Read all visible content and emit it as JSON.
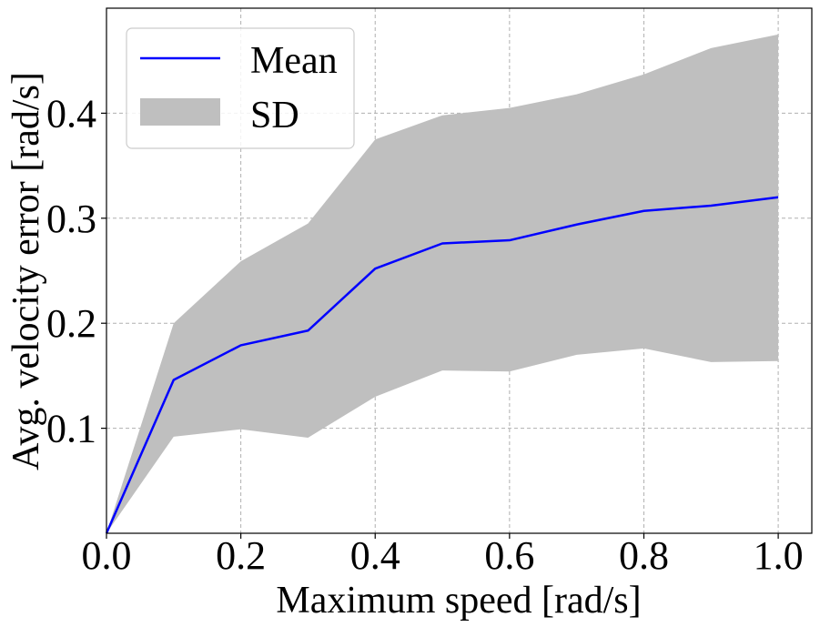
{
  "chart_data": {
    "type": "line",
    "title": "",
    "xlabel": "Maximum speed [rad/s]",
    "ylabel": "Avg. velocity error [rad/s]",
    "xlim": [
      0.0,
      1.05
    ],
    "ylim": [
      0.0,
      0.5
    ],
    "x_ticks": [
      0.0,
      0.2,
      0.4,
      0.6,
      0.8,
      1.0
    ],
    "x_tick_labels": [
      "0.0",
      "0.2",
      "0.4",
      "0.6",
      "0.8",
      "1.0"
    ],
    "y_ticks": [
      0.1,
      0.2,
      0.3,
      0.4
    ],
    "y_tick_labels": [
      "0.1",
      "0.2",
      "0.3",
      "0.4"
    ],
    "grid": true,
    "legend_position": "top-left",
    "x": [
      0.0,
      0.1,
      0.2,
      0.3,
      0.4,
      0.5,
      0.6,
      0.7,
      0.8,
      0.9,
      1.0
    ],
    "series": [
      {
        "name": "Mean",
        "kind": "line",
        "color": "#0000ff",
        "values": [
          0.0,
          0.146,
          0.179,
          0.193,
          0.252,
          0.276,
          0.279,
          0.294,
          0.307,
          0.312,
          0.32
        ]
      },
      {
        "name": "SD",
        "kind": "band",
        "color": "#bfbfbf",
        "lower": [
          0.0,
          0.092,
          0.099,
          0.091,
          0.13,
          0.155,
          0.154,
          0.17,
          0.176,
          0.163,
          0.164
        ],
        "upper": [
          0.0,
          0.2,
          0.259,
          0.295,
          0.375,
          0.398,
          0.405,
          0.418,
          0.437,
          0.462,
          0.475
        ]
      }
    ]
  }
}
